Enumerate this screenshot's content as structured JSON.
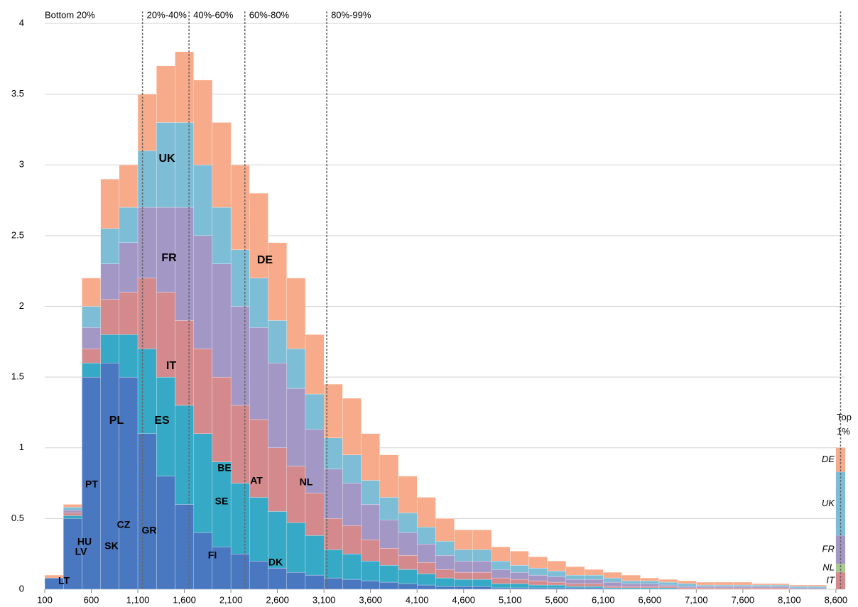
{
  "chart_data": {
    "type": "stacked_histogram",
    "bins": [
      100,
      300,
      500,
      700,
      900,
      1100,
      1300,
      1500,
      1700,
      1900,
      2100,
      2300,
      2500,
      2700,
      2900,
      3100,
      3300,
      3500,
      3700,
      3900,
      4100,
      4300,
      4500,
      4700,
      4900,
      5100,
      5300,
      5500,
      5700,
      5900,
      6100,
      6300,
      6500,
      6700,
      6900,
      7100,
      7300,
      7500,
      7700,
      7900,
      8100,
      8300,
      8500
    ],
    "series": [
      {
        "name": "PL",
        "color": "#4a78c0",
        "values": [
          0.08,
          0.5,
          1.5,
          1.6,
          1.5,
          1.1,
          0.8,
          0.6,
          0.4,
          0.3,
          0.25,
          0.2,
          0.15,
          0.12,
          0.1,
          0.08,
          0.07,
          0.06,
          0.05,
          0.04,
          0.03,
          0.02,
          0.02,
          0.02,
          0.01,
          0.01,
          0.01,
          0.01,
          0.01,
          0.01,
          0,
          0,
          0,
          0,
          0,
          0,
          0,
          0,
          0,
          0,
          0,
          0
        ]
      },
      {
        "name": "ES",
        "color": "#35a9c6",
        "values": [
          0,
          0.02,
          0.1,
          0.2,
          0.3,
          0.6,
          0.7,
          0.7,
          0.7,
          0.6,
          0.5,
          0.45,
          0.4,
          0.35,
          0.28,
          0.2,
          0.18,
          0.14,
          0.12,
          0.1,
          0.08,
          0.06,
          0.05,
          0.05,
          0.03,
          0.03,
          0.02,
          0.02,
          0.01,
          0.01,
          0.01,
          0.01,
          0.01,
          0.01,
          0,
          0,
          0,
          0,
          0,
          0,
          0,
          0
        ]
      },
      {
        "name": "IT",
        "color": "#d48a8c",
        "values": [
          0,
          0.02,
          0.1,
          0.25,
          0.3,
          0.5,
          0.6,
          0.6,
          0.6,
          0.6,
          0.55,
          0.55,
          0.45,
          0.4,
          0.3,
          0.22,
          0.2,
          0.15,
          0.12,
          0.1,
          0.08,
          0.06,
          0.05,
          0.05,
          0.04,
          0.03,
          0.03,
          0.02,
          0.02,
          0.02,
          0.01,
          0.01,
          0.01,
          0.01,
          0.01,
          0.01,
          0.01,
          0.01,
          0.01,
          0.01,
          0,
          0
        ]
      },
      {
        "name": "FR",
        "color": "#a397c6",
        "values": [
          0,
          0.02,
          0.15,
          0.25,
          0.35,
          0.5,
          0.6,
          0.8,
          0.8,
          0.8,
          0.7,
          0.65,
          0.6,
          0.55,
          0.45,
          0.35,
          0.3,
          0.25,
          0.2,
          0.16,
          0.13,
          0.1,
          0.08,
          0.08,
          0.06,
          0.05,
          0.04,
          0.04,
          0.03,
          0.03,
          0.03,
          0.02,
          0.02,
          0.01,
          0.01,
          0.01,
          0.01,
          0.01,
          0.01,
          0.01,
          0.01,
          0.01
        ]
      },
      {
        "name": "UK",
        "color": "#7dbdd6",
        "values": [
          0,
          0.02,
          0.15,
          0.25,
          0.25,
          0.4,
          0.6,
          0.6,
          0.5,
          0.4,
          0.4,
          0.35,
          0.3,
          0.28,
          0.25,
          0.22,
          0.2,
          0.17,
          0.16,
          0.14,
          0.12,
          0.1,
          0.08,
          0.08,
          0.06,
          0.05,
          0.05,
          0.04,
          0.03,
          0.03,
          0.03,
          0.02,
          0.02,
          0.02,
          0.02,
          0.01,
          0.01,
          0.01,
          0.01,
          0.01,
          0.01,
          0.01
        ]
      },
      {
        "name": "DE",
        "color": "#f8ab8a",
        "values": [
          0.02,
          0.02,
          0.2,
          0.35,
          0.3,
          0.4,
          0.4,
          0.5,
          0.6,
          0.6,
          0.6,
          0.6,
          0.55,
          0.5,
          0.42,
          0.38,
          0.4,
          0.33,
          0.3,
          0.26,
          0.21,
          0.16,
          0.14,
          0.14,
          0.1,
          0.1,
          0.08,
          0.07,
          0.06,
          0.04,
          0.04,
          0.04,
          0.02,
          0.02,
          0.02,
          0.02,
          0.02,
          0.02,
          0.01,
          0.01,
          0.01,
          0.01
        ]
      }
    ],
    "annotations": [
      "BE",
      "AT",
      "NL",
      "PT",
      "HU",
      "CZ",
      "GR",
      "SE",
      "FI",
      "DK",
      "SK",
      "LV",
      "LT"
    ],
    "top_1pct": {
      "label": "Top 1%",
      "bins": [
        8600,
        8700
      ],
      "segments": [
        {
          "name": "IT",
          "color": "#d48a8c",
          "value": 0.12
        },
        {
          "name": "NL",
          "color": "#a8c98e",
          "value": 0.06
        },
        {
          "name": "FR",
          "color": "#a397c6",
          "value": 0.2
        },
        {
          "name": "UK",
          "color": "#7dbdd6",
          "value": 0.45
        },
        {
          "name": "DE",
          "color": "#f8ab8a",
          "value": 0.17
        }
      ]
    },
    "dividers": [
      1150,
      1650,
      2250,
      3130,
      8650
    ],
    "group_labels": [
      "Bottom 20%",
      "20%-40%",
      "40%-60%",
      "60%-80%",
      "80%-99%"
    ],
    "xlim": [
      100,
      8700
    ],
    "xticks": [
      100,
      600,
      {
        "value": 1100,
        "label": "1,100"
      },
      {
        "value": 1600,
        "label": "1,600"
      },
      {
        "value": 2100,
        "label": "2,100"
      },
      {
        "value": 2600,
        "label": "2,600"
      },
      {
        "value": 3100,
        "label": "3,100"
      },
      {
        "value": 3600,
        "label": "3,600"
      },
      {
        "value": 4100,
        "label": "4,100"
      },
      {
        "value": 4600,
        "label": "4,600"
      },
      {
        "value": 5100,
        "label": "5,100"
      },
      {
        "value": 5600,
        "label": "5,600"
      },
      {
        "value": 6100,
        "label": "6,100"
      },
      {
        "value": 6600,
        "label": "6,600"
      },
      {
        "value": 7100,
        "label": "7,100"
      },
      {
        "value": 7600,
        "label": "7,600"
      },
      {
        "value": 8100,
        "label": "8,100"
      },
      {
        "value": 8600,
        "label": "8,600"
      }
    ],
    "ylim": [
      0,
      4
    ],
    "yticks": [
      0,
      0.5,
      1,
      1.5,
      2,
      2.5,
      3,
      3.5,
      4
    ],
    "grid": true
  }
}
